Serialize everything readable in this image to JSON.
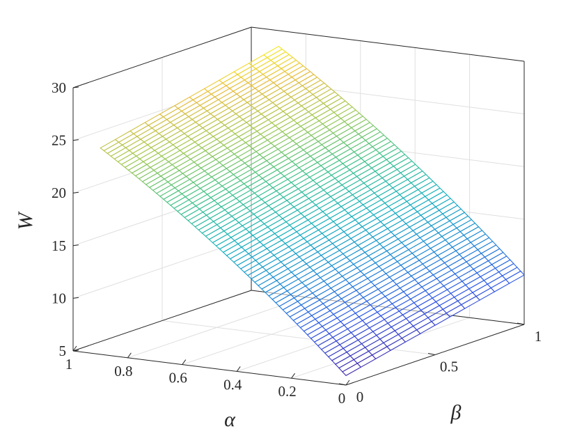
{
  "chart_data": {
    "type": "surface",
    "colormap": "parula",
    "xlabel": "α",
    "ylabel": "β",
    "zlabel": "W",
    "xlim": [
      0,
      1
    ],
    "ylim": [
      0,
      1
    ],
    "zlim": [
      5,
      30
    ],
    "x_ticks": [
      {
        "value": 1,
        "label": "1"
      },
      {
        "value": 0.8,
        "label": "0.8"
      },
      {
        "value": 0.6,
        "label": "0.6"
      },
      {
        "value": 0.4,
        "label": "0.4"
      },
      {
        "value": 0.2,
        "label": "0.2"
      },
      {
        "value": 0,
        "label": "0"
      }
    ],
    "y_ticks": [
      {
        "value": 0,
        "label": "0"
      },
      {
        "value": 0.5,
        "label": "0.5"
      },
      {
        "value": 1,
        "label": "1"
      }
    ],
    "z_ticks": [
      {
        "value": 5,
        "label": "5"
      },
      {
        "value": 10,
        "label": "10"
      },
      {
        "value": 15,
        "label": "15"
      },
      {
        "value": 20,
        "label": "20"
      },
      {
        "value": 25,
        "label": "25"
      },
      {
        "value": 30,
        "label": "30"
      }
    ],
    "grid": true,
    "alpha_range": [
      0,
      0.9
    ],
    "beta_range": [
      0,
      1
    ],
    "mesh_size": {
      "alpha_lines": 70,
      "beta_lines": 12
    },
    "corner_values": [
      {
        "alpha": 0.9,
        "beta": 0,
        "W": 24.6
      },
      {
        "alpha": 0.9,
        "beta": 1,
        "W": 28.5
      },
      {
        "alpha": 0,
        "beta": 0,
        "W": 5.9
      },
      {
        "alpha": 0,
        "beta": 1,
        "W": 9.7
      }
    ],
    "surface_curvature": 0.12
  }
}
